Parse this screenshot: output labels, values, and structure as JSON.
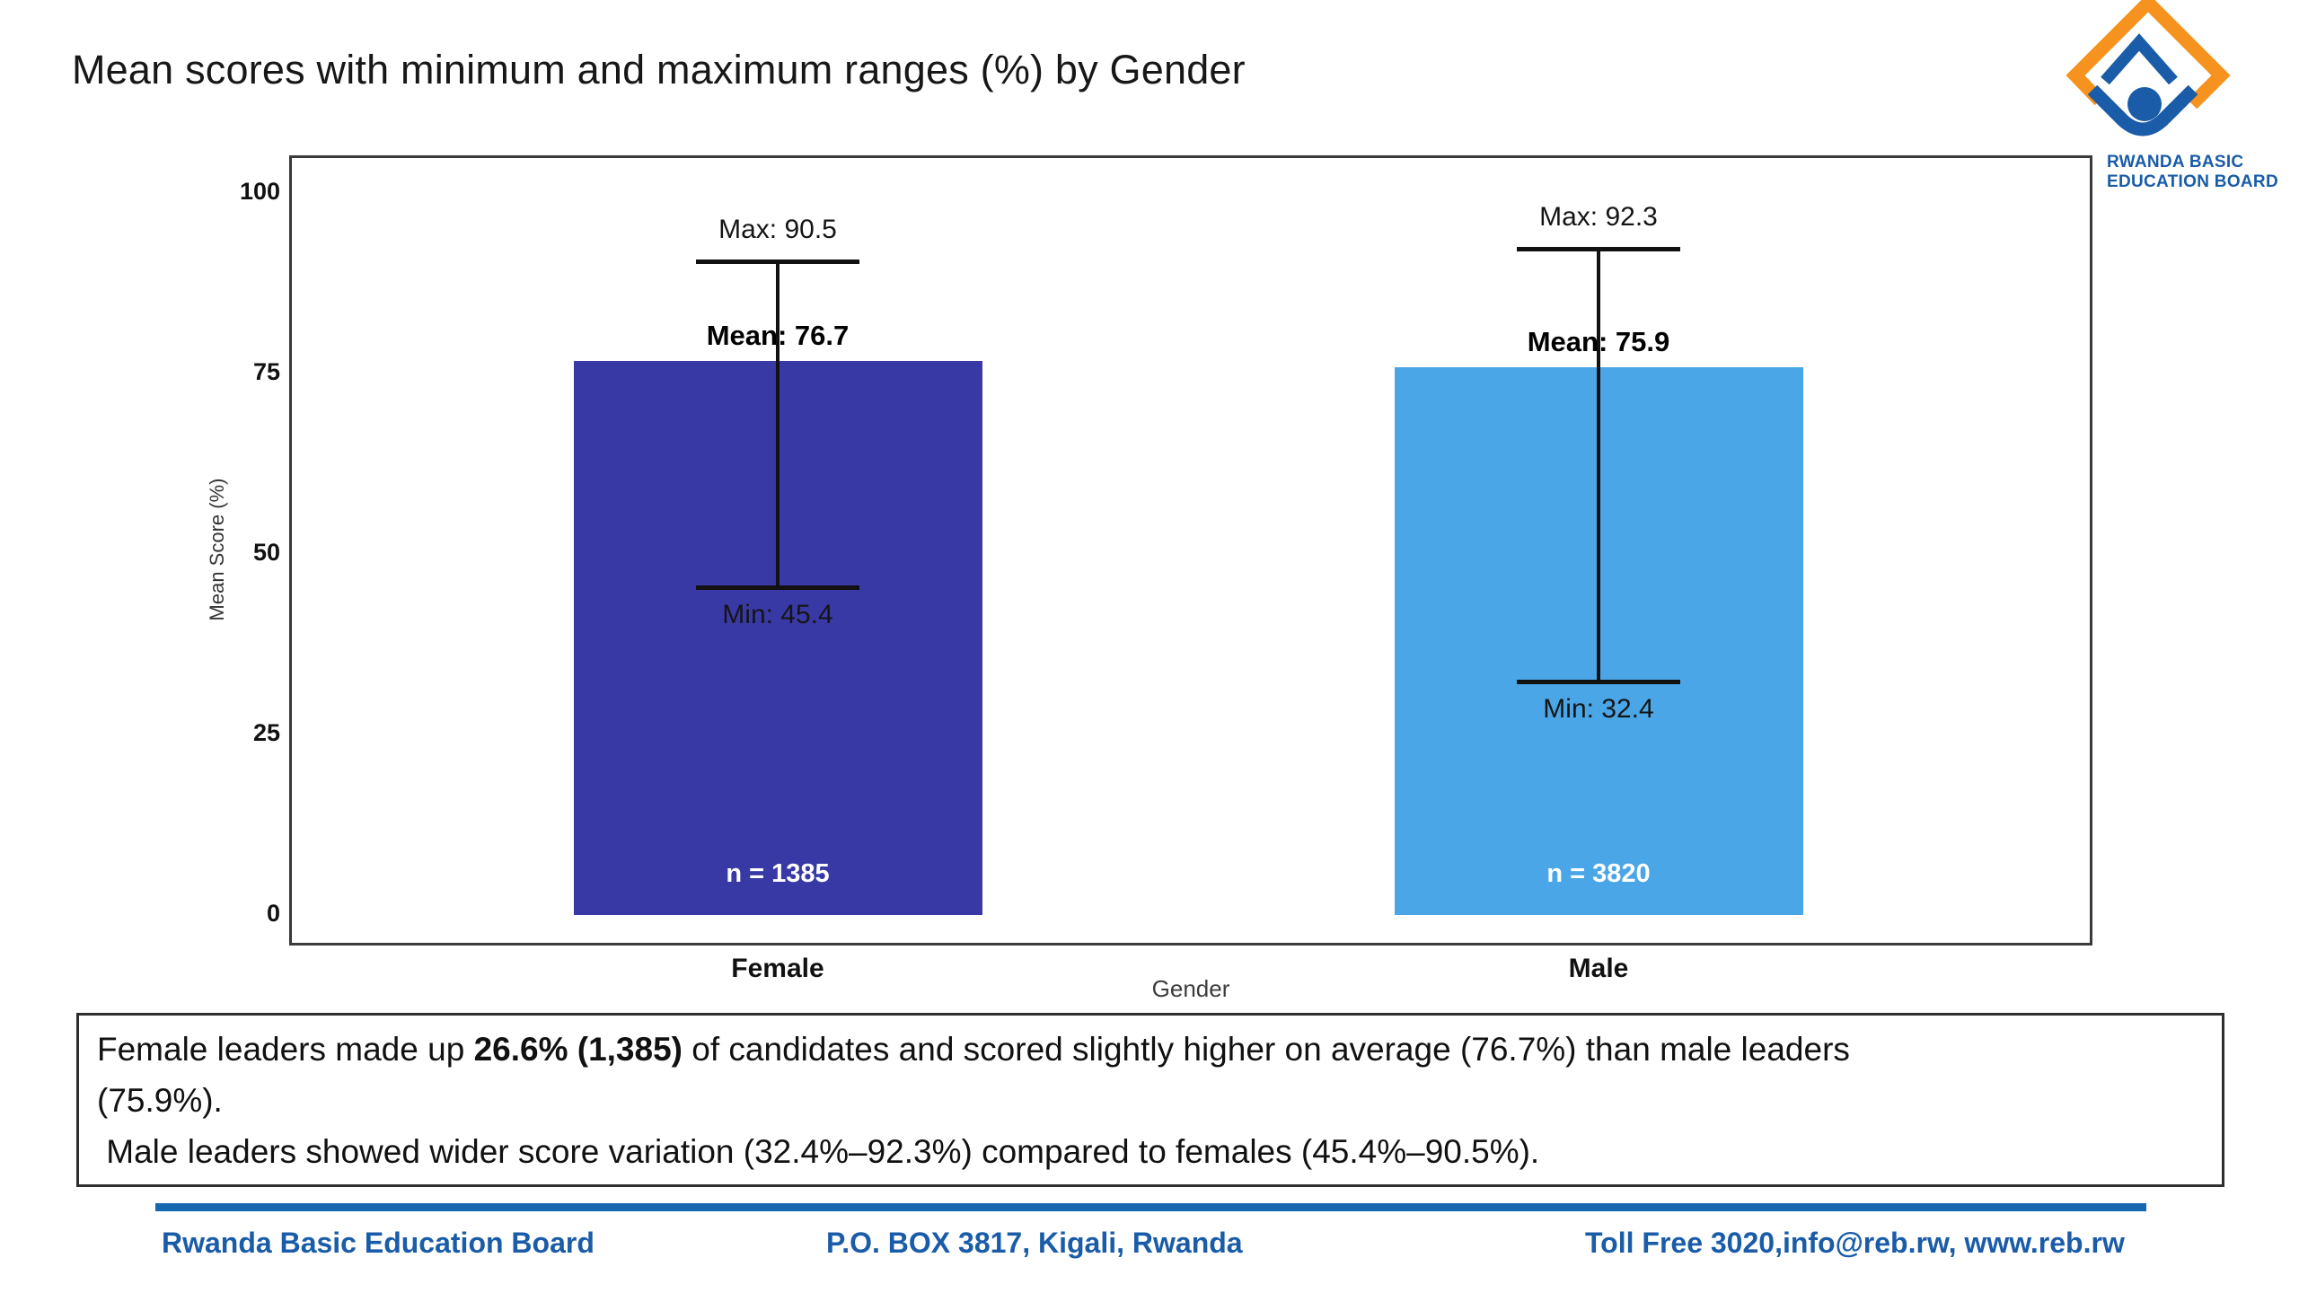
{
  "title": "Mean scores with minimum and maximum ranges (%) by Gender",
  "logo": {
    "line1": "RWANDA BASIC",
    "line2": "EDUCATION BOARD",
    "orange": "#F6921E",
    "blue": "#1A5CA8"
  },
  "chart_data": {
    "type": "bar",
    "title": "Mean scores with minimum and maximum ranges (%) by Gender",
    "xlabel": "Gender",
    "ylabel": "Mean Score (%)",
    "ylim": [
      0,
      100
    ],
    "yticks": [
      0,
      25,
      50,
      75,
      100
    ],
    "grid": false,
    "legend": false,
    "categories": [
      "Female",
      "Male"
    ],
    "series": [
      {
        "name": "Mean Score (%)",
        "values": [
          76.7,
          75.9
        ]
      }
    ],
    "groups": [
      {
        "category": "Female",
        "mean": 76.7,
        "min": 45.4,
        "max": 90.5,
        "n": 1385,
        "mean_label": "Mean: 76.7",
        "max_label": "Max: 90.5",
        "min_label": "Min: 45.4",
        "n_label": "n = 1385",
        "bar_color": "#3939A6"
      },
      {
        "category": "Male",
        "mean": 75.9,
        "min": 32.4,
        "max": 92.3,
        "n": 3820,
        "mean_label": "Mean: 75.9",
        "max_label": "Max: 92.3",
        "min_label": "Min: 32.4",
        "n_label": "n = 3820",
        "bar_color": "#4AA6E7"
      }
    ]
  },
  "textbox": {
    "line1_pre": "Female leaders made up ",
    "line1_bold": "26.6% (1,385)",
    "line1_post": " of candidates and scored slightly higher on average (76.7%) than male leaders",
    "line2": "(75.9%).",
    "line3": " Male leaders showed wider score variation (32.4%–92.3%) compared to females (45.4%–90.5%)."
  },
  "footer": {
    "org": "Rwanda Basic Education Board",
    "address": "P.O. BOX 3817, Kigali, Rwanda",
    "contact": "Toll Free 3020,info@reb.rw, www.reb.rw",
    "text_color": "#1A5CA8",
    "divider_color": "#1767B0"
  }
}
